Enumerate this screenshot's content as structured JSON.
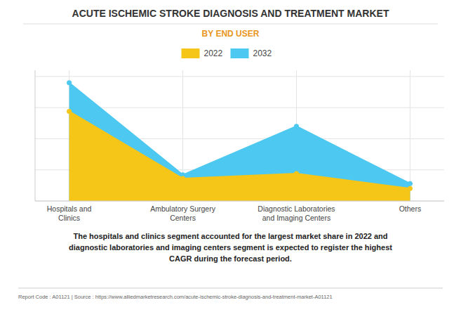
{
  "chart_data": {
    "type": "area",
    "title": "ACUTE ISCHEMIC STROKE DIAGNOSIS AND TREATMENT MARKET",
    "subtitle": "BY END USER",
    "categories": [
      "Hospitals and\nClinics",
      "Ambulatory Surgery\nCenters",
      "Diagnostic Laboratories\nand Imaging Centers",
      "Others"
    ],
    "series": [
      {
        "name": "2022",
        "color": "#F5C518",
        "values": [
          0.72,
          0.18,
          0.22,
          0.1
        ],
        "marker": "circle"
      },
      {
        "name": "2032",
        "color": "#4DC8F0",
        "values": [
          0.95,
          0.21,
          0.6,
          0.14
        ],
        "marker": "circle"
      }
    ],
    "ylim": [
      0,
      1.05
    ],
    "yticks": [
      0,
      0.25,
      0.5,
      0.75,
      1
    ],
    "grid": true,
    "legend": "top",
    "tick_labels": "x",
    "annotations": [
      "The hospitals and clinics segment accounted for the largest market share in 2022 and",
      "diagnostic laboratories and imaging centers segment is expected to register the highest",
      "CAGR during the forecast period.",
      "Report Code : A01121  |  Source : https://www.alliedmarketresearch.com/acute-ischemic-stroke-diagnosis-and-treatment-market-A01121"
    ]
  }
}
